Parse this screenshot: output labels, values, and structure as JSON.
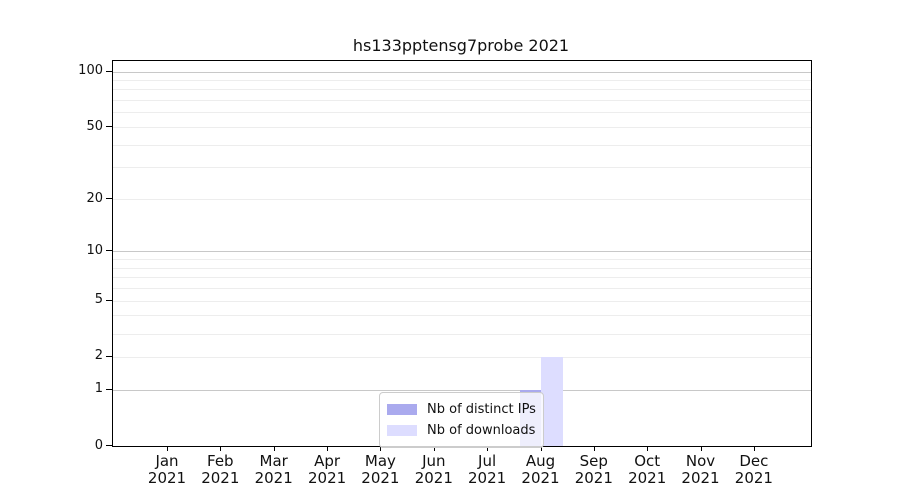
{
  "chart_data": {
    "type": "bar",
    "title": "hs133pptensg7probe 2021",
    "categories": [
      "Jan",
      "Feb",
      "Mar",
      "Apr",
      "May",
      "Jun",
      "Jul",
      "Aug",
      "Sep",
      "Oct",
      "Nov",
      "Dec"
    ],
    "year_label": "2021",
    "series": [
      {
        "name": "Nb of distinct IPs",
        "color": "#aaaaee",
        "values": [
          0,
          0,
          0,
          0,
          0,
          0,
          0,
          1,
          0,
          0,
          0,
          0
        ]
      },
      {
        "name": "Nb of downloads",
        "color": "#ddddff",
        "values": [
          0,
          0,
          0,
          0,
          0,
          0,
          0,
          2,
          0,
          0,
          0,
          0
        ]
      }
    ],
    "y_axis": {
      "scale": "log1p",
      "ticks": [
        0,
        1,
        2,
        5,
        10,
        20,
        50,
        100
      ],
      "ylim": [
        0,
        114
      ]
    },
    "grid": {
      "major": [
        1,
        10,
        100
      ],
      "minor": [
        2,
        3,
        4,
        5,
        6,
        7,
        8,
        9,
        20,
        30,
        40,
        50,
        60,
        70,
        80,
        90
      ]
    },
    "legend": {
      "position": "inside-bottom-center"
    },
    "colors": {
      "grid_major": "#c8c8c8",
      "grid_minor": "#ededed",
      "axis": "#000000"
    }
  }
}
